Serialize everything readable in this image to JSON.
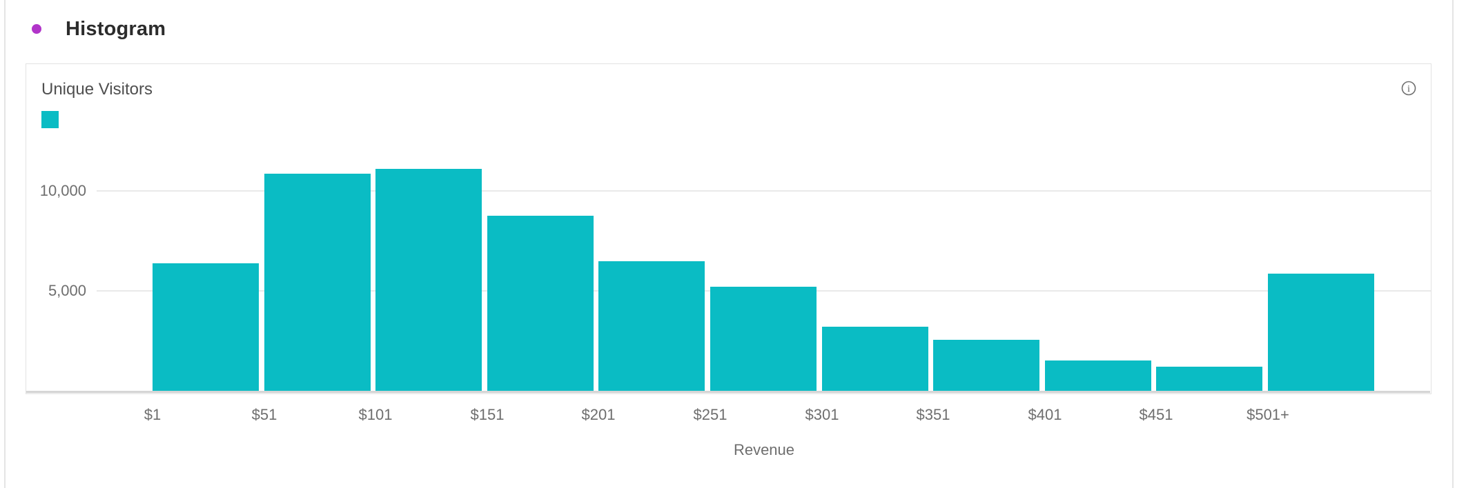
{
  "page": {
    "title": "Histogram"
  },
  "colors": {
    "bar": "#0abcc4",
    "panel_dot": "#b134c9",
    "gridline": "#e9e9e9",
    "axis_text": "#6e6e6e"
  },
  "legend": {
    "series_label": "Unique Visitors"
  },
  "icons": {
    "info": "i"
  },
  "chart_data": {
    "type": "bar",
    "title": "Unique Visitors",
    "categories": [
      "$1",
      "$51",
      "$101",
      "$151",
      "$201",
      "$251",
      "$301",
      "$351",
      "$401",
      "$451",
      "$501+"
    ],
    "values": [
      6380,
      10860,
      11100,
      8760,
      6480,
      5210,
      3210,
      2550,
      1520,
      1210,
      5860
    ],
    "xlabel": "Revenue",
    "ylabel": "Unique Visitors",
    "ylim": [
      0,
      12000
    ],
    "yticks": [
      {
        "value": 5000,
        "label": "5,000"
      },
      {
        "value": 10000,
        "label": "10,000"
      }
    ],
    "grid": "horizontal",
    "legend_position": "top-left",
    "x_label_alignment": "bin-start"
  }
}
